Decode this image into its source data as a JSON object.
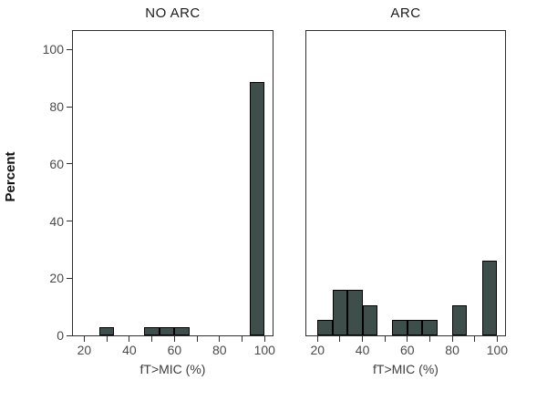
{
  "figure": {
    "ylabel": "Percent",
    "background": "#ffffff",
    "bar_fill": "#3e4f4b",
    "bar_border": "#000000",
    "frame_color": "#2e2e2e"
  },
  "chart_data": [
    {
      "type": "bar",
      "title": "NO ARC",
      "xlabel": "fT>MIC (%)",
      "ylabel": "Percent",
      "xlim": [
        15,
        103.5
      ],
      "ylim": [
        0,
        106.5
      ],
      "grid": false,
      "x_ticks": [
        20,
        30,
        40,
        50,
        60,
        70,
        80,
        90,
        100
      ],
      "x_tick_labels": [
        {
          "value": 20,
          "label": "20"
        },
        {
          "value": 40,
          "label": "40"
        },
        {
          "value": 60,
          "label": "60"
        },
        {
          "value": 80,
          "label": "80"
        },
        {
          "value": 100,
          "label": "100"
        }
      ],
      "y_tick_labels": [
        {
          "value": 0,
          "label": "0"
        },
        {
          "value": 20,
          "label": "20"
        },
        {
          "value": 40,
          "label": "40"
        },
        {
          "value": 60,
          "label": "60"
        },
        {
          "value": 80,
          "label": "80"
        },
        {
          "value": 100,
          "label": "100"
        }
      ],
      "bin_width": 6.67,
      "bars": [
        {
          "x0": 26.67,
          "x1": 33.33,
          "value": 2.9
        },
        {
          "x0": 46.67,
          "x1": 53.33,
          "value": 2.9
        },
        {
          "x0": 53.33,
          "x1": 60.0,
          "value": 2.9
        },
        {
          "x0": 60.0,
          "x1": 66.67,
          "value": 2.9
        },
        {
          "x0": 93.33,
          "x1": 100.0,
          "value": 88.6
        }
      ]
    },
    {
      "type": "bar",
      "title": "ARC",
      "xlabel": "fT>MIC (%)",
      "ylabel": "Percent",
      "xlim": [
        15,
        103.5
      ],
      "ylim": [
        0,
        106.5
      ],
      "grid": false,
      "x_ticks": [
        20,
        30,
        40,
        50,
        60,
        70,
        80,
        90,
        100
      ],
      "x_tick_labels": [
        {
          "value": 20,
          "label": "20"
        },
        {
          "value": 40,
          "label": "40"
        },
        {
          "value": 60,
          "label": "60"
        },
        {
          "value": 80,
          "label": "80"
        },
        {
          "value": 100,
          "label": "100"
        }
      ],
      "y_tick_labels": [],
      "bin_width": 6.67,
      "bars": [
        {
          "x0": 20.0,
          "x1": 26.67,
          "value": 5.3
        },
        {
          "x0": 26.67,
          "x1": 33.33,
          "value": 15.8
        },
        {
          "x0": 33.33,
          "x1": 40.0,
          "value": 15.8
        },
        {
          "x0": 40.0,
          "x1": 46.67,
          "value": 10.5
        },
        {
          "x0": 53.33,
          "x1": 60.0,
          "value": 5.3
        },
        {
          "x0": 60.0,
          "x1": 66.67,
          "value": 5.3
        },
        {
          "x0": 66.67,
          "x1": 73.33,
          "value": 5.3
        },
        {
          "x0": 80.0,
          "x1": 86.67,
          "value": 10.5
        },
        {
          "x0": 93.33,
          "x1": 100.0,
          "value": 26.3
        }
      ]
    }
  ]
}
